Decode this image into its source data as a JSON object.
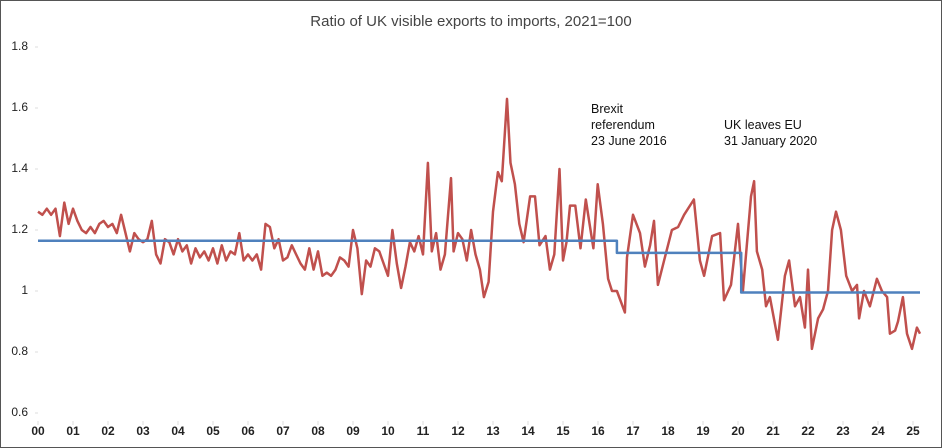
{
  "chart_data": {
    "type": "line",
    "title": "Ratio of UK visible exports to imports, 2021=100",
    "xlim": [
      0,
      25.2
    ],
    "ylim": [
      0.6,
      1.8
    ],
    "yticks": [
      0.6,
      0.8,
      1,
      1.2,
      1.4,
      1.6,
      1.8
    ],
    "xticks": [
      {
        "value": 0,
        "label": "00"
      },
      {
        "value": 1,
        "label": "01"
      },
      {
        "value": 2,
        "label": "02"
      },
      {
        "value": 3,
        "label": "03"
      },
      {
        "value": 4,
        "label": "04"
      },
      {
        "value": 5,
        "label": "05"
      },
      {
        "value": 6,
        "label": "06"
      },
      {
        "value": 7,
        "label": "07"
      },
      {
        "value": 8,
        "label": "08"
      },
      {
        "value": 9,
        "label": "09"
      },
      {
        "value": 10,
        "label": "10"
      },
      {
        "value": 11,
        "label": "11"
      },
      {
        "value": 12,
        "label": "12"
      },
      {
        "value": 13,
        "label": "13"
      },
      {
        "value": 14,
        "label": "14"
      },
      {
        "value": 15,
        "label": "15"
      },
      {
        "value": 16,
        "label": "16"
      },
      {
        "value": 17,
        "label": "17"
      },
      {
        "value": 18,
        "label": "18"
      },
      {
        "value": 19,
        "label": "19"
      },
      {
        "value": 20,
        "label": "20"
      },
      {
        "value": 21,
        "label": "21"
      },
      {
        "value": 22,
        "label": "22"
      },
      {
        "value": 23,
        "label": "23"
      },
      {
        "value": 24,
        "label": "24"
      },
      {
        "value": 25,
        "label": "25"
      }
    ],
    "series": [
      {
        "color": "#c0504d",
        "x": [
          0,
          0.125,
          0.25,
          0.375,
          0.5,
          0.625,
          0.75,
          0.875,
          1,
          1.125,
          1.25,
          1.375,
          1.5,
          1.625,
          1.75,
          1.875,
          2,
          2.125,
          2.25,
          2.375,
          2.5,
          2.625,
          2.75,
          2.875,
          3,
          3.125,
          3.25,
          3.375,
          3.5,
          3.625,
          3.75,
          3.875,
          4,
          4.125,
          4.25,
          4.375,
          4.5,
          4.625,
          4.75,
          4.875,
          5,
          5.125,
          5.25,
          5.375,
          5.5,
          5.625,
          5.75,
          5.875,
          6,
          6.125,
          6.25,
          6.375,
          6.5,
          6.625,
          6.75,
          6.875,
          7,
          7.125,
          7.25,
          7.375,
          7.5,
          7.625,
          7.75,
          7.875,
          8,
          8.125,
          8.25,
          8.375,
          8.5,
          8.625,
          8.75,
          8.875,
          9,
          9.125,
          9.25,
          9.375,
          9.5,
          9.625,
          9.75,
          9.875,
          10,
          10.125,
          10.25,
          10.375,
          10.5,
          10.625,
          10.75,
          10.875,
          11,
          11.14,
          11.25,
          11.375,
          11.5,
          11.625,
          11.8,
          11.875,
          12,
          12.125,
          12.25,
          12.375,
          12.5,
          12.625,
          12.74,
          12.875,
          13,
          13.14,
          13.25,
          13.4,
          13.5,
          13.625,
          13.75,
          13.875,
          14.06,
          14.2,
          14.33,
          14.5,
          14.625,
          14.75,
          14.9,
          15,
          15.1,
          15.2,
          15.35,
          15.5,
          15.65,
          15.8,
          15.87,
          15.99,
          16.14,
          16.29,
          16.4,
          16.54,
          16.77,
          16.83,
          17,
          17.2,
          17.34,
          17.49,
          17.6,
          17.71,
          17.89,
          18.11,
          18.29,
          18.46,
          18.74,
          18.91,
          19.03,
          19.26,
          19.49,
          19.6,
          19.8,
          20,
          20.14,
          20.37,
          20.46,
          20.54,
          20.69,
          20.8,
          20.91,
          21.14,
          21.34,
          21.46,
          21.63,
          21.77,
          21.91,
          22,
          22.11,
          22.29,
          22.43,
          22.57,
          22.69,
          22.8,
          22.94,
          23.09,
          23.26,
          23.4,
          23.46,
          23.6,
          23.77,
          23.97,
          24.11,
          24.26,
          24.34,
          24.49,
          24.57,
          24.71,
          24.83,
          24.97,
          25.11,
          25.2
        ],
        "values": [
          1.26,
          1.25,
          1.27,
          1.25,
          1.27,
          1.18,
          1.29,
          1.22,
          1.27,
          1.23,
          1.2,
          1.19,
          1.21,
          1.19,
          1.22,
          1.23,
          1.21,
          1.22,
          1.19,
          1.25,
          1.19,
          1.13,
          1.19,
          1.17,
          1.16,
          1.17,
          1.23,
          1.12,
          1.09,
          1.17,
          1.16,
          1.12,
          1.17,
          1.13,
          1.15,
          1.09,
          1.14,
          1.11,
          1.13,
          1.1,
          1.14,
          1.09,
          1.15,
          1.1,
          1.13,
          1.12,
          1.19,
          1.1,
          1.12,
          1.1,
          1.12,
          1.07,
          1.22,
          1.21,
          1.14,
          1.17,
          1.1,
          1.11,
          1.15,
          1.12,
          1.09,
          1.07,
          1.14,
          1.07,
          1.13,
          1.05,
          1.06,
          1.05,
          1.07,
          1.11,
          1.1,
          1.08,
          1.2,
          1.14,
          0.99,
          1.1,
          1.08,
          1.14,
          1.13,
          1.09,
          1.05,
          1.2,
          1.09,
          1.01,
          1.08,
          1.16,
          1.13,
          1.18,
          1.12,
          1.42,
          1.13,
          1.19,
          1.07,
          1.12,
          1.37,
          1.13,
          1.19,
          1.17,
          1.1,
          1.2,
          1.12,
          1.07,
          0.98,
          1.03,
          1.26,
          1.39,
          1.36,
          1.63,
          1.42,
          1.35,
          1.22,
          1.16,
          1.31,
          1.31,
          1.15,
          1.18,
          1.07,
          1.12,
          1.4,
          1.1,
          1.16,
          1.28,
          1.28,
          1.14,
          1.3,
          1.19,
          1.14,
          1.35,
          1.22,
          1.04,
          1.0,
          1.0,
          0.93,
          1.11,
          1.25,
          1.19,
          1.08,
          1.15,
          1.23,
          1.02,
          1.1,
          1.2,
          1.21,
          1.25,
          1.3,
          1.1,
          1.05,
          1.18,
          1.19,
          0.97,
          1.02,
          1.22,
          1.0,
          1.31,
          1.36,
          1.13,
          1.07,
          0.95,
          0.98,
          0.84,
          1.05,
          1.1,
          0.95,
          0.98,
          0.88,
          1.07,
          0.81,
          0.91,
          0.94,
          1.0,
          1.2,
          1.26,
          1.2,
          1.05,
          1.0,
          1.02,
          0.91,
          1.0,
          0.95,
          1.04,
          1.0,
          0.98,
          0.86,
          0.87,
          0.9,
          0.98,
          0.86,
          0.81,
          0.88,
          0.86
        ]
      },
      {
        "color": "#4f81bd",
        "x": [
          0,
          16.54,
          16.54,
          20.09,
          20.09,
          25.2
        ],
        "values": [
          1.165,
          1.165,
          1.125,
          1.125,
          0.995,
          0.995
        ]
      }
    ],
    "annotations": [
      {
        "x": 15.8,
        "y": 1.49,
        "lines": [
          "Brexit",
          "referendum",
          "23 June 2016"
        ]
      },
      {
        "x": 19.6,
        "y": 1.49,
        "lines": [
          "UK leaves EU",
          "31 January 2020"
        ]
      }
    ]
  }
}
